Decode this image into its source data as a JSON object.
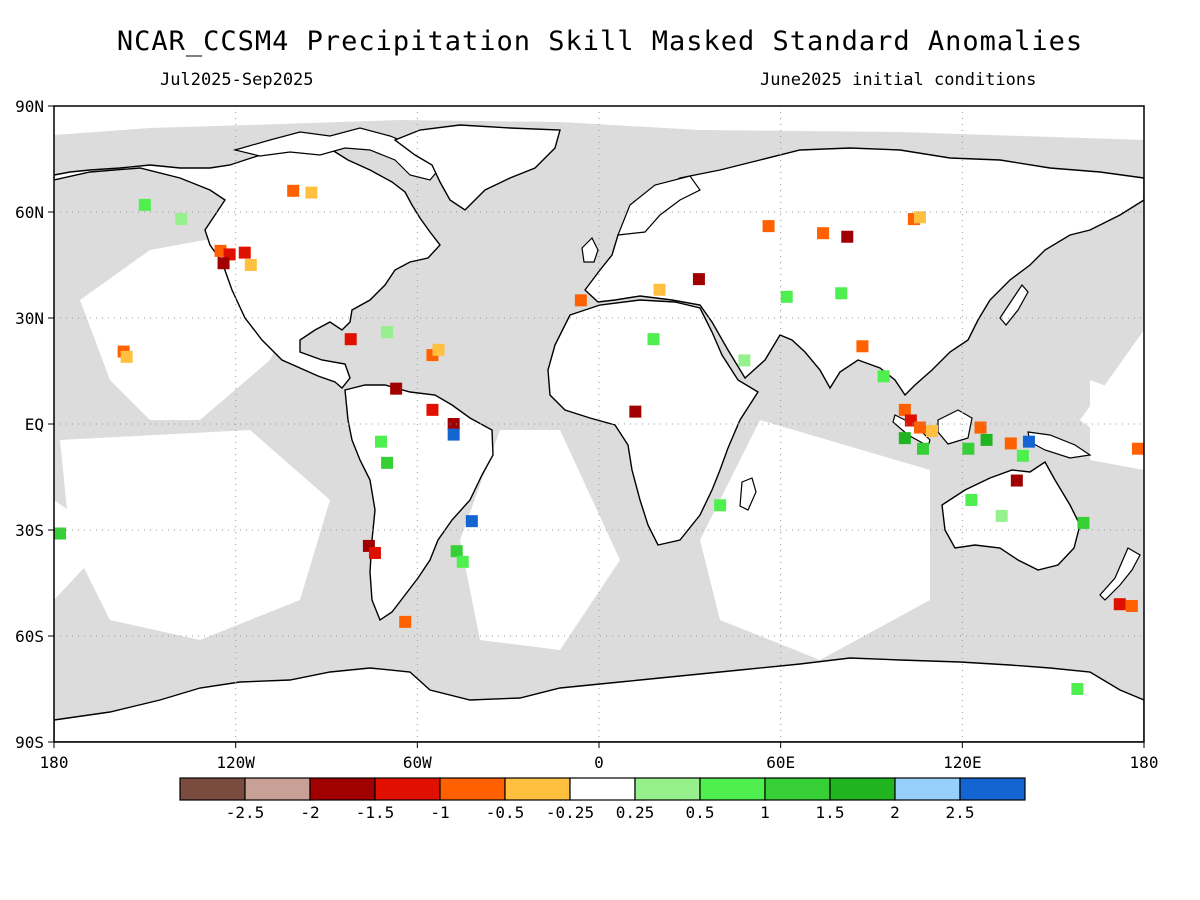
{
  "title": "NCAR_CCSM4 Precipitation Skill Masked Standard Anomalies",
  "subtitle_left": "Jul2025-Sep2025",
  "subtitle_right": "June2025 initial conditions",
  "map": {
    "projection": "equirectangular",
    "lon_range": [
      -180,
      180
    ],
    "lat_range": [
      -90,
      90
    ],
    "lat_labels": [
      "90N",
      "60N",
      "30N",
      "EQ",
      "30S",
      "60S",
      "90S"
    ],
    "lon_labels": [
      "180",
      "120W",
      "60W",
      "0",
      "60E",
      "120E",
      "180"
    ],
    "gridlines": "dotted",
    "land_color": "#ffffff",
    "masked_color": "#dcdcdc"
  },
  "colorbar": {
    "colors": [
      "#7a4c40",
      "#c8a096",
      "#a00000",
      "#e01000",
      "#ff6000",
      "#ffc040",
      "#ffffff",
      "#96f08c",
      "#50ef50",
      "#36d036",
      "#20b420",
      "#96d0fa",
      "#1464d2"
    ],
    "labels": [
      "-2.5",
      "-2",
      "-1.5",
      "-1",
      "-0.5",
      "-0.25",
      "0.25",
      "0.5",
      "1",
      "1.5",
      "2",
      "2.5"
    ]
  },
  "anomalies": [
    {
      "lon": -125,
      "lat": 49,
      "cat": 4
    },
    {
      "lon": -122,
      "lat": 48,
      "cat": 3
    },
    {
      "lon": -117,
      "lat": 48.5,
      "cat": 3
    },
    {
      "lon": -124,
      "lat": 45.5,
      "cat": 2
    },
    {
      "lon": -115,
      "lat": 45,
      "cat": 5
    },
    {
      "lon": -101,
      "lat": 66,
      "cat": 4
    },
    {
      "lon": -95,
      "lat": 65.5,
      "cat": 5
    },
    {
      "lon": -157,
      "lat": 20.5,
      "cat": 4
    },
    {
      "lon": -156,
      "lat": 19,
      "cat": 5
    },
    {
      "lon": -82,
      "lat": 24,
      "cat": 3
    },
    {
      "lon": -55,
      "lat": 19.5,
      "cat": 4
    },
    {
      "lon": -53,
      "lat": 21,
      "cat": 5
    },
    {
      "lon": -67,
      "lat": 10,
      "cat": 2
    },
    {
      "lon": -55,
      "lat": 4,
      "cat": 3
    },
    {
      "lon": -48,
      "lat": 0,
      "cat": 2
    },
    {
      "lon": -76,
      "lat": -34.5,
      "cat": 2
    },
    {
      "lon": -74,
      "lat": -36.5,
      "cat": 3
    },
    {
      "lon": -64,
      "lat": -56,
      "cat": 4
    },
    {
      "lon": -6,
      "lat": 35,
      "cat": 4
    },
    {
      "lon": 12,
      "lat": 3.5,
      "cat": 2
    },
    {
      "lon": 20,
      "lat": 38,
      "cat": 5
    },
    {
      "lon": 33,
      "lat": 41,
      "cat": 2
    },
    {
      "lon": 56,
      "lat": 56,
      "cat": 4
    },
    {
      "lon": 74,
      "lat": 54,
      "cat": 4
    },
    {
      "lon": 82,
      "lat": 53,
      "cat": 2
    },
    {
      "lon": 104,
      "lat": 58,
      "cat": 4
    },
    {
      "lon": 106,
      "lat": 58.5,
      "cat": 5
    },
    {
      "lon": 87,
      "lat": 22,
      "cat": 4
    },
    {
      "lon": 101,
      "lat": 4,
      "cat": 4
    },
    {
      "lon": 103,
      "lat": 1,
      "cat": 3
    },
    {
      "lon": 106,
      "lat": -1,
      "cat": 4
    },
    {
      "lon": 110,
      "lat": -2,
      "cat": 5
    },
    {
      "lon": 126,
      "lat": -1,
      "cat": 4
    },
    {
      "lon": 136,
      "lat": -5.5,
      "cat": 4
    },
    {
      "lon": 138,
      "lat": -16,
      "cat": 2
    },
    {
      "lon": 172,
      "lat": -51,
      "cat": 3
    },
    {
      "lon": 176,
      "lat": -51.5,
      "cat": 4
    },
    {
      "lon": 178,
      "lat": -7,
      "cat": 4
    },
    {
      "lon": -138,
      "lat": 58,
      "cat": 7
    },
    {
      "lon": -150,
      "lat": 62,
      "cat": 8
    },
    {
      "lon": -70,
      "lat": 26,
      "cat": 7
    },
    {
      "lon": -72,
      "lat": -5,
      "cat": 8
    },
    {
      "lon": -70,
      "lat": -11,
      "cat": 9
    },
    {
      "lon": -47,
      "lat": -36,
      "cat": 9
    },
    {
      "lon": -45,
      "lat": -39,
      "cat": 8
    },
    {
      "lon": -178,
      "lat": -31,
      "cat": 9
    },
    {
      "lon": 18,
      "lat": 24,
      "cat": 8
    },
    {
      "lon": 48,
      "lat": 18,
      "cat": 7
    },
    {
      "lon": 40,
      "lat": -23,
      "cat": 8
    },
    {
      "lon": 62,
      "lat": 36,
      "cat": 8
    },
    {
      "lon": 80,
      "lat": 37,
      "cat": 8
    },
    {
      "lon": 94,
      "lat": 13.5,
      "cat": 8
    },
    {
      "lon": 101,
      "lat": -4,
      "cat": 10
    },
    {
      "lon": 107,
      "lat": -7,
      "cat": 9
    },
    {
      "lon": 122,
      "lat": -7,
      "cat": 9
    },
    {
      "lon": 128,
      "lat": -4.5,
      "cat": 10
    },
    {
      "lon": 140,
      "lat": -9,
      "cat": 8
    },
    {
      "lon": 123,
      "lat": -21.5,
      "cat": 8
    },
    {
      "lon": 133,
      "lat": -26,
      "cat": 7
    },
    {
      "lon": 160,
      "lat": -28,
      "cat": 9
    },
    {
      "lon": 158,
      "lat": -75,
      "cat": 8
    },
    {
      "lon": -48,
      "lat": -3,
      "cat": 12
    },
    {
      "lon": -42,
      "lat": -27.5,
      "cat": 12
    },
    {
      "lon": 142,
      "lat": -5,
      "cat": 12
    }
  ]
}
